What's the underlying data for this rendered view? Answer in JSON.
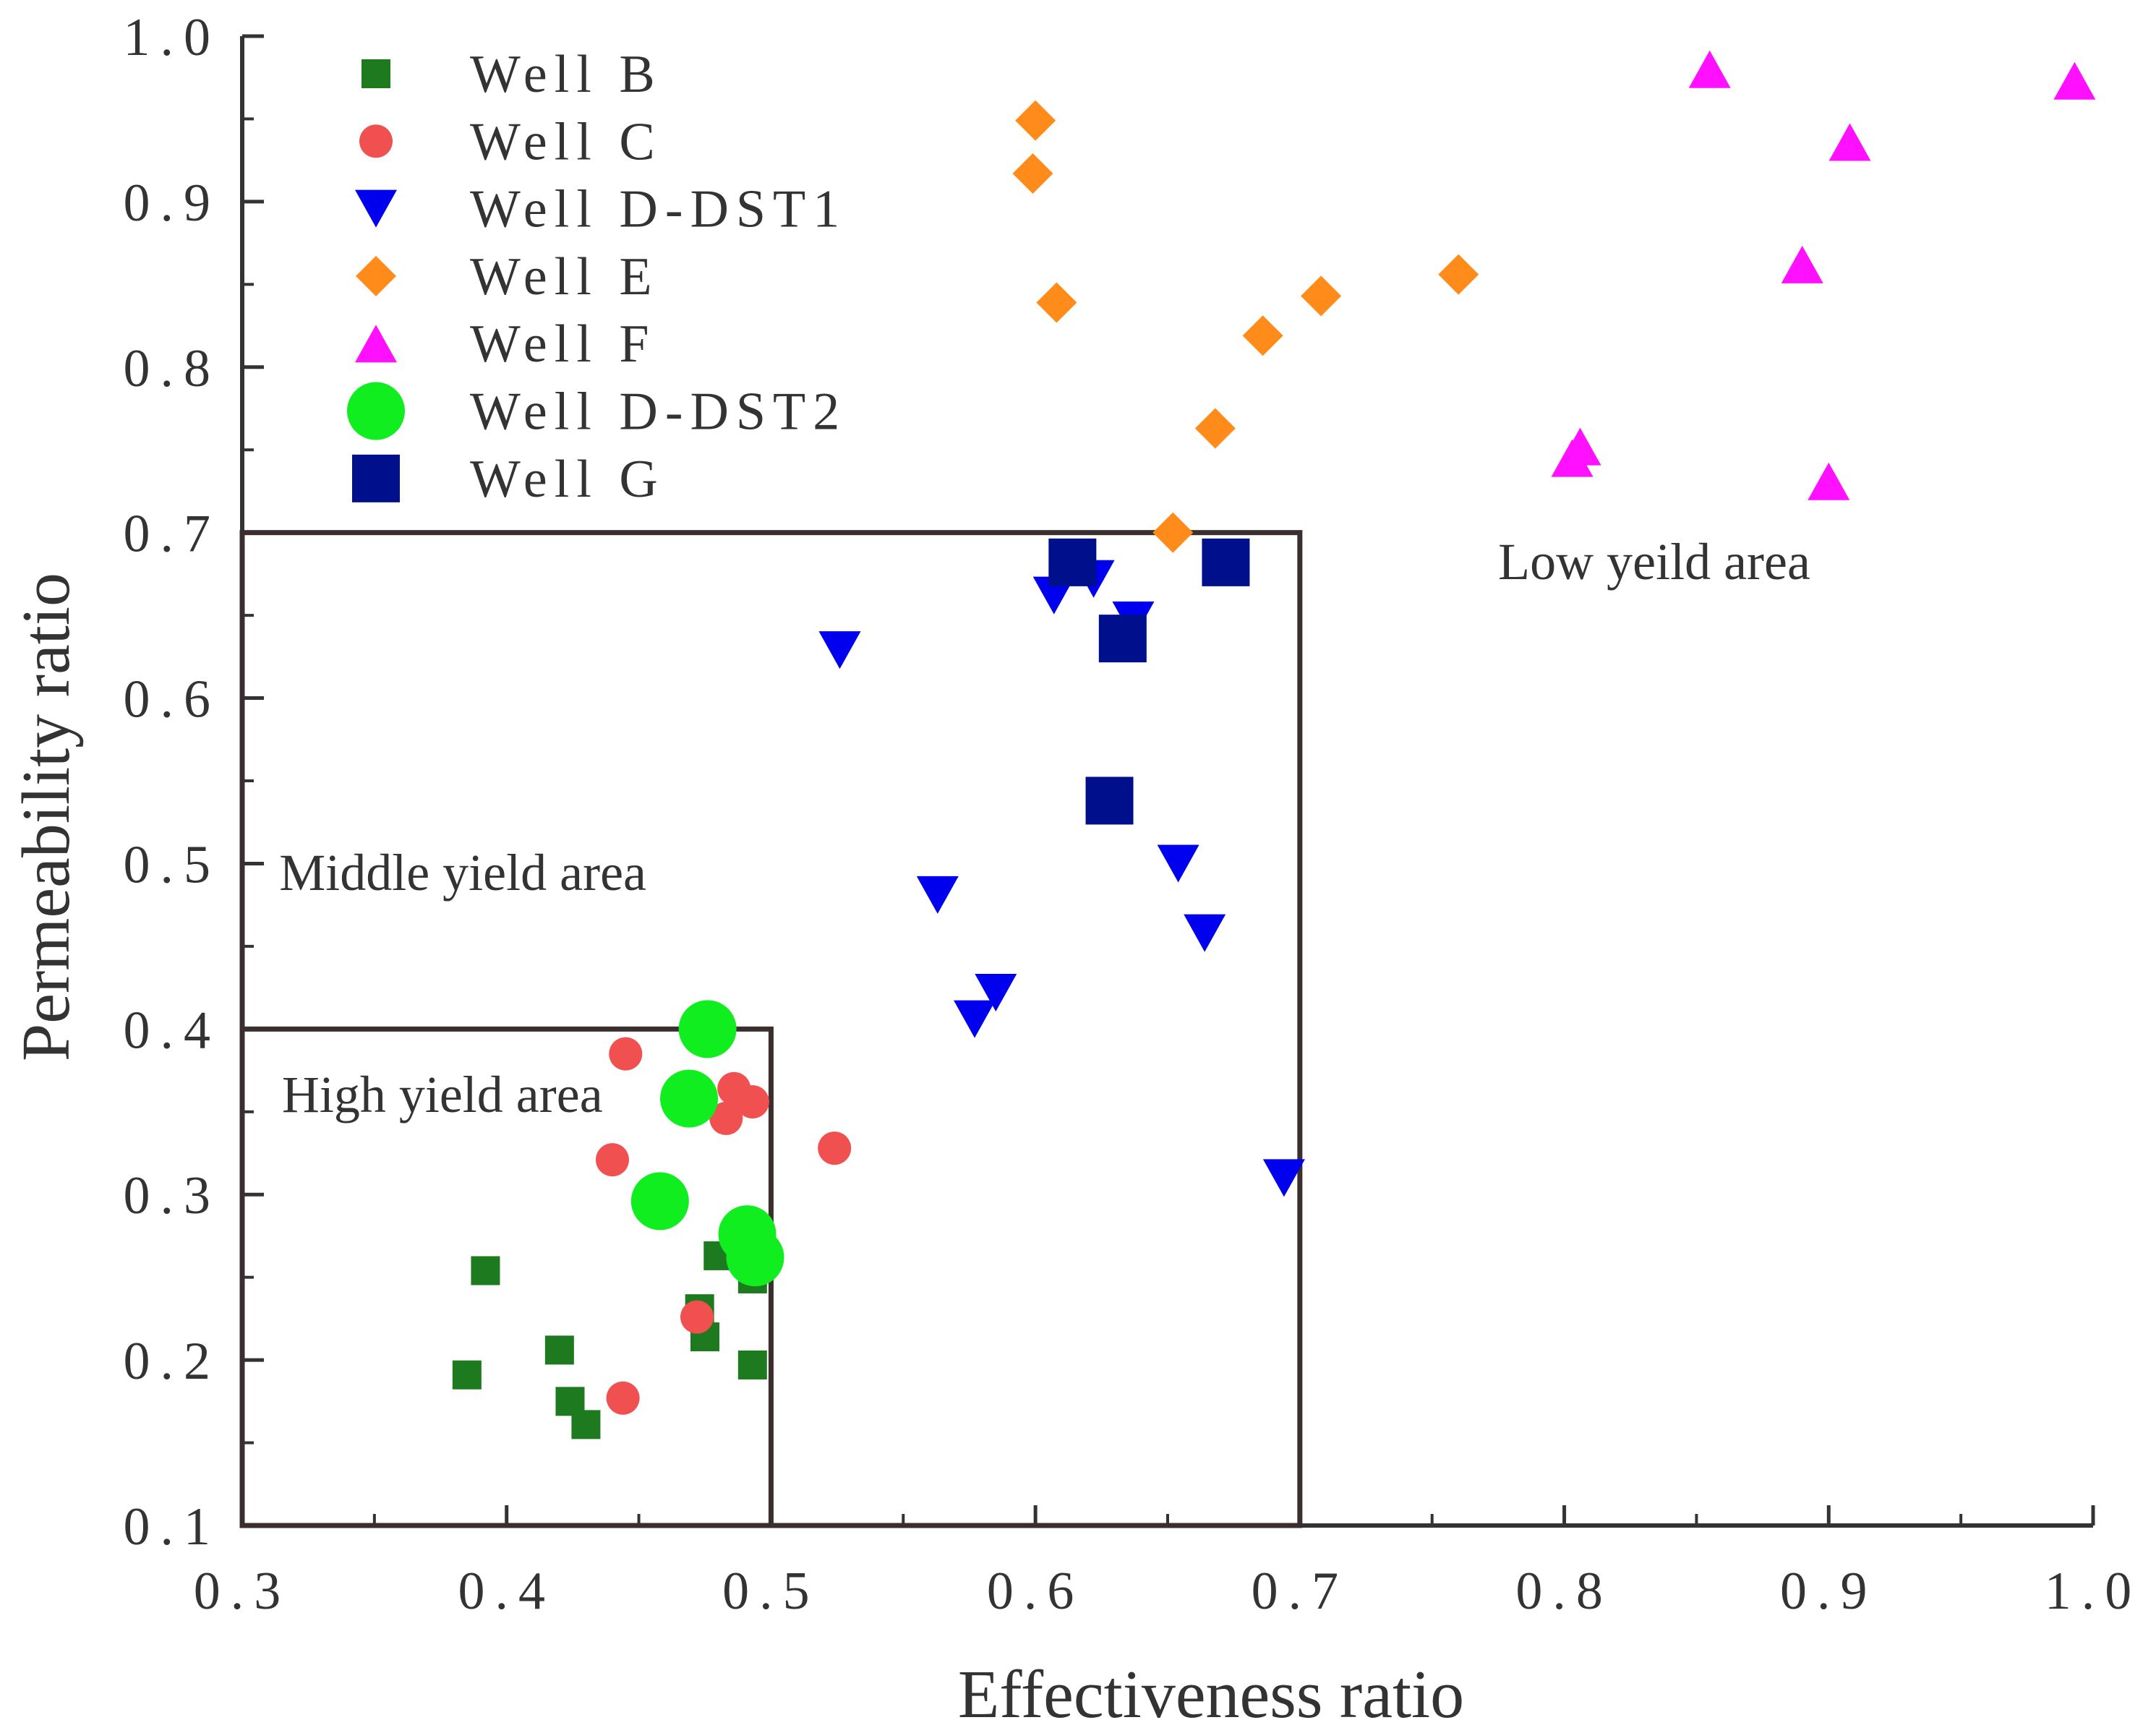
{
  "chart_data": {
    "type": "scatter",
    "title": "",
    "xlabel": "Effectiveness ratio",
    "ylabel": "Permeability ratio",
    "xlim": [
      0.3,
      1.0
    ],
    "ylim": [
      0.1,
      1.0
    ],
    "x_tick_labels": [
      "0.3",
      "0.4",
      "0.5",
      "0.6",
      "0.7",
      "0.8",
      "0.9",
      "1.0"
    ],
    "y_tick_labels": [
      "0.1",
      "0.2",
      "0.3",
      "0.4",
      "0.5",
      "0.6",
      "0.7",
      "0.8",
      "0.9",
      "1.0"
    ],
    "legend_position": "top-left",
    "grid": false,
    "series": [
      {
        "name": "Well B",
        "marker": "square",
        "size": "small",
        "color": "#1e7a1e",
        "points": [
          [
            0.385,
            0.191
          ],
          [
            0.392,
            0.254
          ],
          [
            0.42,
            0.206
          ],
          [
            0.424,
            0.175
          ],
          [
            0.43,
            0.161
          ],
          [
            0.473,
            0.231
          ],
          [
            0.475,
            0.214
          ],
          [
            0.48,
            0.263
          ],
          [
            0.493,
            0.249
          ],
          [
            0.493,
            0.197
          ]
        ]
      },
      {
        "name": "Well C",
        "marker": "circle",
        "size": "small",
        "color": "#f05050",
        "points": [
          [
            0.445,
            0.385
          ],
          [
            0.44,
            0.321
          ],
          [
            0.444,
            0.177
          ],
          [
            0.472,
            0.226
          ],
          [
            0.483,
            0.346
          ],
          [
            0.486,
            0.364
          ],
          [
            0.493,
            0.356
          ],
          [
            0.524,
            0.328
          ]
        ]
      },
      {
        "name": "Well D-DST1",
        "marker": "triangle-down",
        "size": "small",
        "color": "#0000ee",
        "points": [
          [
            0.526,
            0.629
          ],
          [
            0.563,
            0.481
          ],
          [
            0.577,
            0.406
          ],
          [
            0.585,
            0.422
          ],
          [
            0.607,
            0.662
          ],
          [
            0.622,
            0.672
          ],
          [
            0.637,
            0.647
          ],
          [
            0.654,
            0.5
          ],
          [
            0.664,
            0.458
          ],
          [
            0.694,
            0.31
          ]
        ]
      },
      {
        "name": "Well E",
        "marker": "diamond",
        "size": "small",
        "color": "#ff8c1a",
        "points": [
          [
            0.6,
            0.949
          ],
          [
            0.599,
            0.917
          ],
          [
            0.608,
            0.839
          ],
          [
            0.652,
            0.7
          ],
          [
            0.668,
            0.763
          ],
          [
            0.686,
            0.819
          ],
          [
            0.708,
            0.843
          ],
          [
            0.76,
            0.856
          ]
        ]
      },
      {
        "name": "Well F",
        "marker": "triangle-up",
        "size": "small",
        "color": "#ff10ff",
        "points": [
          [
            0.803,
            0.745
          ],
          [
            0.806,
            0.752
          ],
          [
            0.855,
            0.98
          ],
          [
            0.89,
            0.862
          ],
          [
            0.9,
            0.731
          ],
          [
            0.908,
            0.936
          ],
          [
            0.993,
            0.973
          ]
        ]
      },
      {
        "name": "Well D-DST2",
        "marker": "circle",
        "size": "large",
        "color": "#10ee20",
        "points": [
          [
            0.476,
            0.4
          ],
          [
            0.469,
            0.358
          ],
          [
            0.458,
            0.296
          ],
          [
            0.491,
            0.276
          ],
          [
            0.494,
            0.262
          ]
        ]
      },
      {
        "name": "Well G",
        "marker": "square",
        "size": "large",
        "color": "#00108c",
        "points": [
          [
            0.614,
            0.682
          ],
          [
            0.672,
            0.682
          ],
          [
            0.633,
            0.636
          ],
          [
            0.628,
            0.538
          ]
        ]
      }
    ],
    "regions": [
      {
        "name": "High yield area",
        "x_range": [
          0.3,
          0.5
        ],
        "y_range": [
          0.1,
          0.4
        ]
      },
      {
        "name": "Middle yield area",
        "x_range": [
          0.3,
          0.7
        ],
        "y_range": [
          0.1,
          0.7
        ]
      }
    ],
    "annotations": [
      {
        "text": "Low yeild area",
        "x": 0.775,
        "y": 0.672
      },
      {
        "text": "Middle yield area",
        "x": 0.314,
        "y": 0.484
      },
      {
        "text": "High yield area",
        "x": 0.315,
        "y": 0.35
      }
    ]
  }
}
